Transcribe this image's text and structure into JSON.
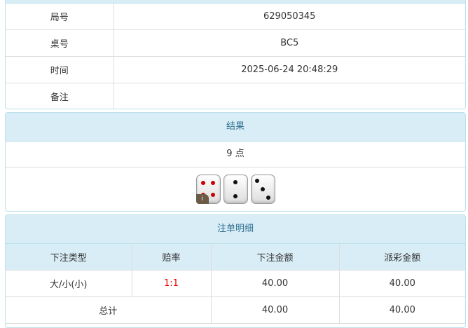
{
  "info": {
    "rows": [
      {
        "label": "局号",
        "value": "629050345"
      },
      {
        "label": "桌号",
        "value": "BC5"
      },
      {
        "label": "时间",
        "value": "2025-06-24 20:48:29"
      },
      {
        "label": "备注",
        "value": ""
      }
    ]
  },
  "result": {
    "title": "结果",
    "points": "9 点",
    "dice": [
      4,
      2,
      3
    ],
    "info_badge": "i"
  },
  "bets": {
    "title": "注单明细",
    "headers": [
      "下注类型",
      "赔率",
      "下注金额",
      "派彩金额"
    ],
    "rows": [
      {
        "type": "大/小(小)",
        "odds": "1:1",
        "amount": "40.00",
        "payout": "40.00"
      }
    ],
    "total": {
      "label": "总计",
      "amount": "40.00",
      "payout": "40.00"
    }
  },
  "colors": {
    "header_bg": "#d9edf7",
    "header_text": "#31708f",
    "odds": "#ee0000"
  }
}
